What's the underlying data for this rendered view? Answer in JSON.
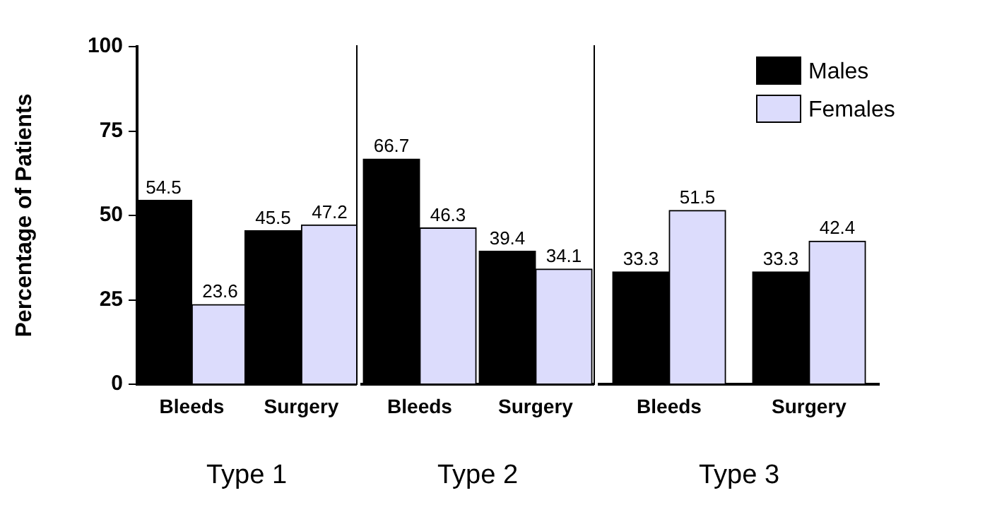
{
  "chart_data": [
    {
      "type": "bar",
      "categories": [
        "Bleeds",
        "Surgery"
      ],
      "xlabel": "Type 1",
      "ylabel": "Percentage of Patients",
      "ylim": [
        0,
        100
      ],
      "yticks": [
        0,
        25,
        50,
        75,
        100
      ],
      "data_labels": true,
      "series": [
        {
          "color": "#000000",
          "values": [
            54.5,
            45.5
          ]
        },
        {
          "color": "#dcdcfc",
          "values": [
            23.6,
            47.2
          ]
        }
      ]
    },
    {
      "type": "bar",
      "categories": [
        "Bleeds",
        "Surgery"
      ],
      "xlabel": "Type 2",
      "ylim": [
        0,
        100
      ],
      "yticks": [
        0,
        25,
        50,
        75,
        100
      ],
      "tick_labels": "x",
      "data_labels": true,
      "series": [
        {
          "color": "#000000",
          "values": [
            66.7,
            39.4
          ]
        },
        {
          "color": "#dcdcfc",
          "values": [
            46.3,
            34.1
          ]
        }
      ]
    },
    {
      "type": "bar",
      "categories": [
        "Bleeds",
        "Surgery"
      ],
      "xlabel": "Type 3",
      "ylim": [
        0,
        100
      ],
      "yticks": [
        0,
        25,
        50,
        75,
        100
      ],
      "tick_labels": "x",
      "data_labels": true,
      "legend": "top right",
      "series": [
        {
          "name": "Males",
          "color": "#000000",
          "values": [
            33.3,
            33.3
          ]
        },
        {
          "name": "Females",
          "color": "#dcdcfc",
          "values": [
            51.5,
            42.4
          ]
        }
      ]
    }
  ]
}
